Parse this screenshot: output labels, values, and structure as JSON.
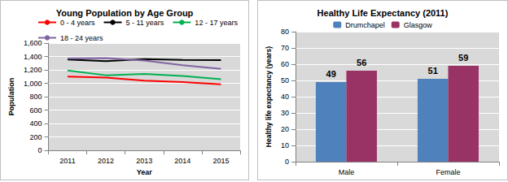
{
  "chart_data": [
    {
      "type": "line",
      "title": "Young Population by Age Group",
      "x_label": "Year",
      "y_label": "Population",
      "categories": [
        "2011",
        "2012",
        "2013",
        "2014",
        "2015"
      ],
      "series": [
        {
          "name": "0 - 4 years",
          "color": "#ff0000",
          "values": [
            1100,
            1085,
            1040,
            1020,
            985
          ]
        },
        {
          "name": "5 - 11 years",
          "color": "#000000",
          "values": [
            1355,
            1330,
            1360,
            1350,
            1345
          ]
        },
        {
          "name": "12 - 17 years",
          "color": "#00b050",
          "values": [
            1190,
            1120,
            1140,
            1110,
            1060
          ]
        },
        {
          "name": "18 - 24 years",
          "color": "#8064a2",
          "values": [
            1370,
            1375,
            1340,
            1270,
            1215
          ]
        }
      ],
      "ylim": [
        0,
        1600
      ],
      "yticks": [
        0,
        200,
        400,
        600,
        800,
        {
          "value": 1000,
          "label": "1,000"
        },
        {
          "value": 1200,
          "label": "1,200"
        },
        {
          "value": 1400,
          "label": "1,400"
        },
        {
          "value": 1600,
          "label": "1,600"
        }
      ],
      "marker": "none",
      "grid": true,
      "legend": "top"
    },
    {
      "type": "bar",
      "title": "Healthy Life Expectancy (2011)",
      "y_label": "Healthy life expectancy (years)",
      "categories": [
        "Male",
        "Female"
      ],
      "series": [
        {
          "name": "Drumchapel",
          "color": "#4f81bd",
          "values": [
            49,
            51
          ]
        },
        {
          "name": "Glasgow",
          "color": "#993366",
          "values": [
            56,
            59
          ]
        }
      ],
      "ylim": [
        0,
        80
      ],
      "yticks": [
        0,
        10,
        20,
        30,
        40,
        50,
        60,
        70,
        80
      ],
      "data_labels": true,
      "grid": true,
      "legend": "top"
    }
  ]
}
